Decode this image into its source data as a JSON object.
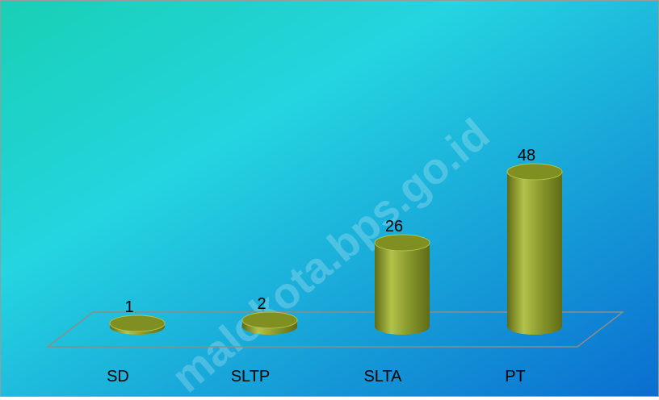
{
  "chart_data": {
    "type": "bar",
    "style": "3d-cylinder",
    "categories": [
      "SD",
      "SLTP",
      "SLTA",
      "PT"
    ],
    "values": [
      1,
      2,
      26,
      48
    ],
    "data_labels": [
      "1",
      "2",
      "26",
      "48"
    ],
    "ylim": [
      0,
      48
    ],
    "grid": false,
    "legend": "none",
    "title": "",
    "xlabel": "",
    "ylabel": "",
    "colors": {
      "bar_main": "#8a9a2c",
      "bar_light": "#b3c24a",
      "bar_dark": "#5f6c16",
      "bar_top": "#7f8f22",
      "background_start": "#18d0b4",
      "background_mid": "#24d4e0",
      "background_end": "#0a6ed0",
      "floor_stroke": "#8c8c8c"
    }
  },
  "watermark": "malokota.bps.go.id"
}
